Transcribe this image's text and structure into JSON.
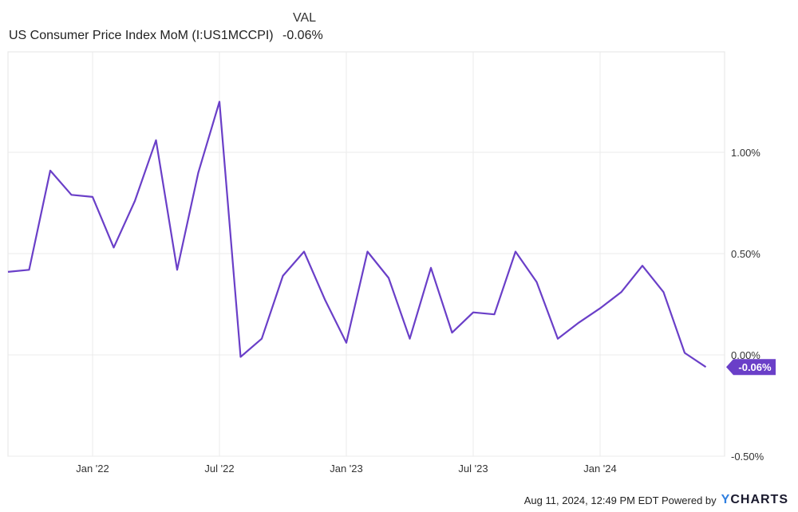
{
  "legend": {
    "header": "VAL",
    "series_name": "US Consumer Price Index MoM (I:US1MCCPI)",
    "series_value": "-0.06%"
  },
  "footer": {
    "text": "Aug 11, 2024, 12:49 PM EDT Powered by",
    "logo_y": "Y",
    "logo_rest": "CHARTS"
  },
  "colors": {
    "line": "#6a3fc8",
    "badge": "#6a3fc8",
    "grid": "#ebebeb"
  },
  "chart_data": {
    "type": "line",
    "x": [
      "2021-09",
      "2021-10",
      "2021-11",
      "2021-12",
      "2022-01",
      "2022-02",
      "2022-03",
      "2022-04",
      "2022-05",
      "2022-06",
      "2022-07",
      "2022-08",
      "2022-09",
      "2022-10",
      "2022-11",
      "2022-12",
      "2023-01",
      "2023-02",
      "2023-03",
      "2023-04",
      "2023-05",
      "2023-06",
      "2023-07",
      "2023-08",
      "2023-09",
      "2023-10",
      "2023-11",
      "2023-12",
      "2024-01",
      "2024-02",
      "2024-03",
      "2024-04",
      "2024-05",
      "2024-06"
    ],
    "series": [
      {
        "name": "US Consumer Price Index MoM (I:US1MCCPI)",
        "values": [
          0.41,
          0.42,
          0.91,
          0.79,
          0.78,
          0.53,
          0.76,
          1.06,
          0.42,
          0.9,
          1.25,
          -0.01,
          0.08,
          0.39,
          0.51,
          0.27,
          0.06,
          0.51,
          0.38,
          0.08,
          0.43,
          0.11,
          0.21,
          0.2,
          0.51,
          0.36,
          0.08,
          0.16,
          0.23,
          0.31,
          0.44,
          0.31,
          0.01,
          -0.06
        ]
      }
    ],
    "x_tick_labels": [
      "Jan '22",
      "Jul '22",
      "Jan '23",
      "Jul '23",
      "Jan '24"
    ],
    "x_tick_positions": [
      "2022-01",
      "2022-07",
      "2023-01",
      "2023-07",
      "2024-01"
    ],
    "y_tick_labels": [
      "1.00%",
      "0.50%",
      "0.00%",
      "-0.50%"
    ],
    "y_ticks": [
      1.0,
      0.5,
      0.0,
      -0.5
    ],
    "ylim": [
      -0.5,
      1.5
    ],
    "last_value_label": "-0.06%",
    "grid": true,
    "legend_position": "top-left"
  }
}
